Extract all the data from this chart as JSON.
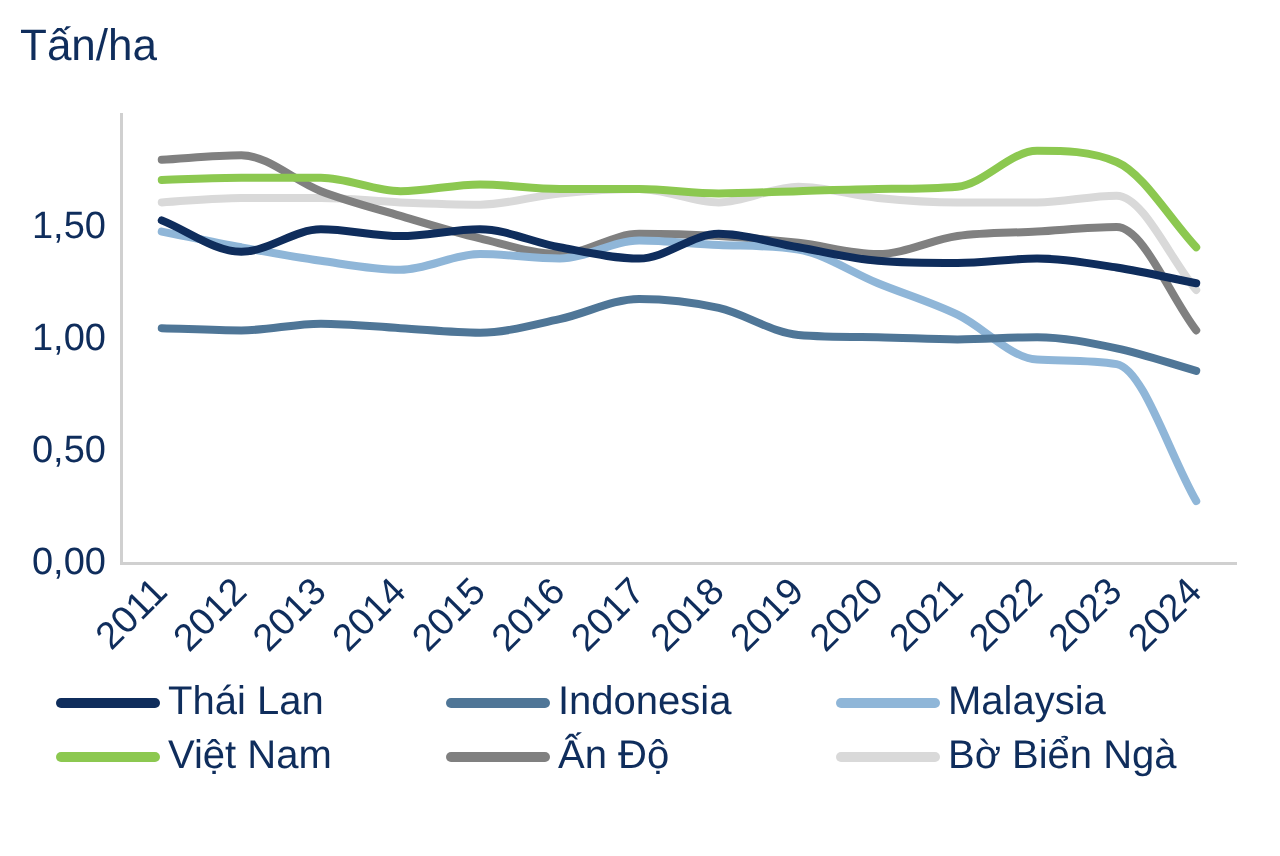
{
  "chart_data": {
    "type": "line",
    "ylabel": "Tấn/ha",
    "categories": [
      "2011",
      "2012",
      "2013",
      "2014",
      "2015",
      "2016",
      "2017",
      "2018",
      "2019",
      "2020",
      "2021",
      "2022",
      "2023",
      "2024"
    ],
    "series": [
      {
        "name": "Thái Lan",
        "color": "#0f2d5c",
        "values": [
          1.53,
          1.39,
          1.49,
          1.46,
          1.49,
          1.41,
          1.36,
          1.47,
          1.41,
          1.35,
          1.34,
          1.36,
          1.32,
          1.25
        ]
      },
      {
        "name": "Indonesia",
        "color": "#4f7697",
        "values": [
          1.05,
          1.04,
          1.07,
          1.05,
          1.03,
          1.09,
          1.18,
          1.14,
          1.02,
          1.01,
          1.0,
          1.01,
          0.96,
          0.86
        ]
      },
      {
        "name": "Malaysia",
        "color": "#8fb6d8",
        "values": [
          1.48,
          1.41,
          1.35,
          1.31,
          1.38,
          1.36,
          1.44,
          1.42,
          1.4,
          1.25,
          1.11,
          0.91,
          0.89,
          0.28
        ]
      },
      {
        "name": "Việt Nam",
        "color": "#8cc850",
        "values": [
          1.71,
          1.72,
          1.72,
          1.66,
          1.69,
          1.67,
          1.67,
          1.65,
          1.66,
          1.67,
          1.68,
          1.84,
          1.79,
          1.41
        ]
      },
      {
        "name": "Ấn Độ",
        "color": "#808080",
        "values": [
          1.8,
          1.82,
          1.66,
          1.55,
          1.45,
          1.38,
          1.47,
          1.46,
          1.43,
          1.38,
          1.46,
          1.48,
          1.5,
          1.04
        ]
      },
      {
        "name": "Bờ Biển Ngà",
        "color": "#d9d9d9",
        "values": [
          1.61,
          1.63,
          1.63,
          1.61,
          1.6,
          1.65,
          1.67,
          1.61,
          1.68,
          1.63,
          1.61,
          1.61,
          1.64,
          1.22
        ]
      }
    ],
    "ylim": [
      0,
      2
    ],
    "yticks": [
      {
        "value": 0,
        "label": "0,00"
      },
      {
        "value": 0.5,
        "label": "0,50"
      },
      {
        "value": 1,
        "label": "1,00"
      },
      {
        "value": 1.5,
        "label": "1,50"
      }
    ],
    "grid": false,
    "legend": "bottom",
    "marker": "none",
    "line_style": "solid"
  }
}
